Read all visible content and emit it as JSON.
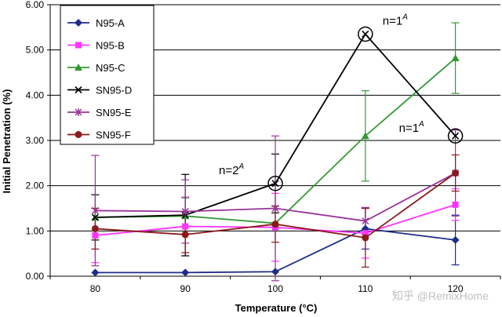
{
  "chart_data": {
    "type": "line",
    "title": "",
    "xlabel": "Temperature (°C)",
    "ylabel": "Initial Penetration (%)",
    "x": [
      80,
      90,
      100,
      110,
      120
    ],
    "x_tick_labels": [
      "80",
      "90",
      "100",
      "110",
      "120"
    ],
    "ylim": [
      0,
      6
    ],
    "y_tick_labels": [
      "0.00",
      "1.00",
      "2.00",
      "3.00",
      "4.00",
      "5.00",
      "6.00"
    ],
    "grid": "horizontal",
    "legend_position": "top-left",
    "series": [
      {
        "name": "N95-A",
        "color": "#1f2d8a",
        "marker": "diamond",
        "values": [
          0.08,
          0.08,
          0.1,
          1.05,
          0.8
        ],
        "err": [
          0,
          0,
          0,
          0.45,
          0.55
        ]
      },
      {
        "name": "N95-B",
        "color": "#ff33ff",
        "marker": "square",
        "values": [
          0.9,
          1.1,
          1.08,
          0.95,
          1.58
        ],
        "err": [
          0.6,
          0.65,
          0.75,
          0.55,
          0.35
        ]
      },
      {
        "name": "N95-C",
        "color": "#339933",
        "marker": "triangle",
        "values": [
          1.3,
          1.33,
          1.17,
          3.1,
          4.82
        ],
        "err": [
          0,
          0.4,
          0,
          1.0,
          0.78
        ]
      },
      {
        "name": "SN95-D",
        "color": "#000000",
        "marker": "x",
        "values": [
          1.3,
          1.35,
          2.05,
          5.35,
          3.1
        ],
        "err": [
          0.5,
          0.9,
          0.65,
          0,
          0
        ]
      },
      {
        "name": "SN95-E",
        "color": "#993399",
        "marker": "asterisk",
        "values": [
          1.45,
          1.43,
          1.5,
          1.22,
          2.28
        ],
        "err": [
          1.22,
          0.7,
          1.6,
          0.3,
          0.95
        ]
      },
      {
        "name": "SN95-F",
        "color": "#8b1a1a",
        "marker": "circle",
        "values": [
          1.05,
          0.92,
          1.15,
          0.85,
          2.28
        ],
        "err": [
          0.45,
          0.4,
          0.4,
          0.65,
          0.4
        ]
      }
    ],
    "annotations": [
      {
        "text": "n=2",
        "sup": "A",
        "x": 100,
        "y": 2.05
      },
      {
        "text": "n=1",
        "sup": "A",
        "x": 110,
        "y": 5.35
      },
      {
        "text": "n=1",
        "sup": "A",
        "x": 120,
        "y": 3.1
      }
    ]
  },
  "watermark": "知乎 @RemixHome"
}
